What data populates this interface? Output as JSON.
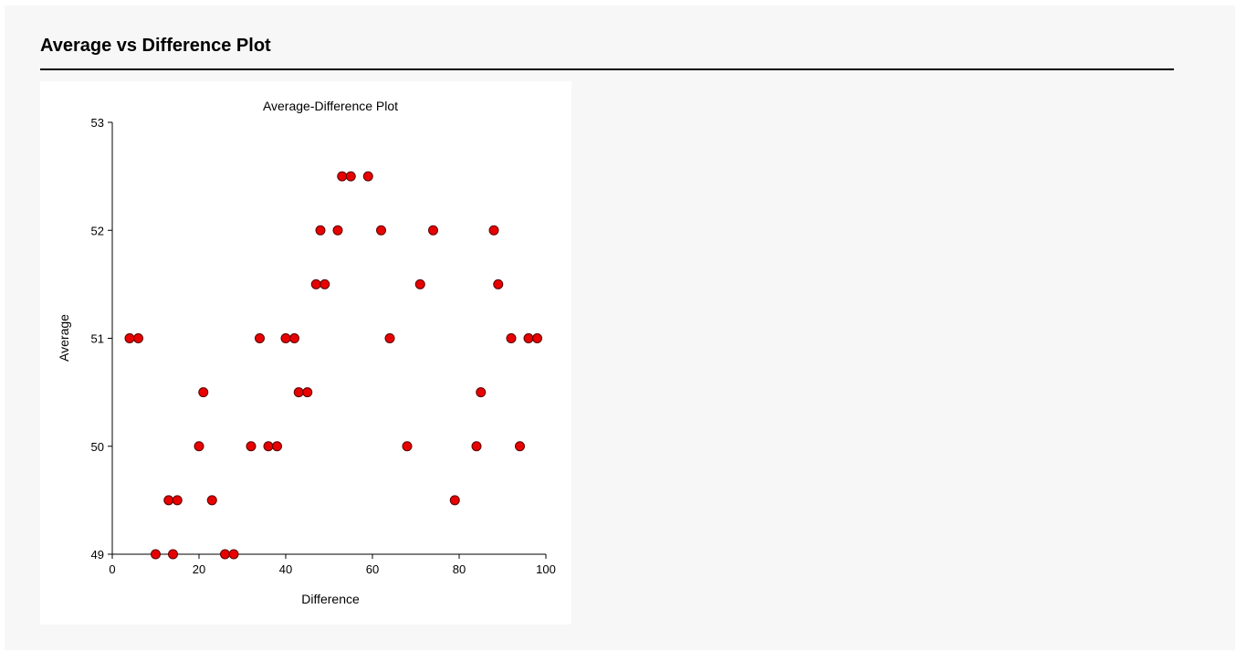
{
  "page": {
    "title": "Average vs Difference Plot"
  },
  "colors": {
    "marker_fill": "#e80000",
    "marker_stroke": "#5a0000",
    "axis": "#000000"
  },
  "chart_data": {
    "type": "scatter",
    "title": "Average-Difference Plot",
    "xlabel": "Difference",
    "ylabel": "Average",
    "xlim": [
      0,
      100
    ],
    "ylim": [
      49,
      53
    ],
    "xticks": [
      0,
      20,
      40,
      60,
      80,
      100
    ],
    "yticks": [
      49,
      50,
      51,
      52,
      53
    ],
    "grid": false,
    "points": [
      {
        "x": 4,
        "y": 51
      },
      {
        "x": 6,
        "y": 51
      },
      {
        "x": 10,
        "y": 49
      },
      {
        "x": 13,
        "y": 49.5
      },
      {
        "x": 14,
        "y": 49
      },
      {
        "x": 15,
        "y": 49.5
      },
      {
        "x": 20,
        "y": 50
      },
      {
        "x": 21,
        "y": 50.5
      },
      {
        "x": 23,
        "y": 49.5
      },
      {
        "x": 26,
        "y": 49
      },
      {
        "x": 28,
        "y": 49
      },
      {
        "x": 32,
        "y": 50
      },
      {
        "x": 34,
        "y": 51
      },
      {
        "x": 36,
        "y": 50
      },
      {
        "x": 38,
        "y": 50
      },
      {
        "x": 40,
        "y": 51
      },
      {
        "x": 42,
        "y": 51
      },
      {
        "x": 43,
        "y": 50.5
      },
      {
        "x": 45,
        "y": 50.5
      },
      {
        "x": 47,
        "y": 51.5
      },
      {
        "x": 48,
        "y": 52
      },
      {
        "x": 49,
        "y": 51.5
      },
      {
        "x": 52,
        "y": 52
      },
      {
        "x": 53,
        "y": 52.5
      },
      {
        "x": 55,
        "y": 52.5
      },
      {
        "x": 59,
        "y": 52.5
      },
      {
        "x": 62,
        "y": 52
      },
      {
        "x": 64,
        "y": 51
      },
      {
        "x": 68,
        "y": 50
      },
      {
        "x": 71,
        "y": 51.5
      },
      {
        "x": 74,
        "y": 52
      },
      {
        "x": 79,
        "y": 49.5
      },
      {
        "x": 84,
        "y": 50
      },
      {
        "x": 85,
        "y": 50.5
      },
      {
        "x": 88,
        "y": 52
      },
      {
        "x": 89,
        "y": 51.5
      },
      {
        "x": 92,
        "y": 51
      },
      {
        "x": 94,
        "y": 50
      },
      {
        "x": 96,
        "y": 51
      },
      {
        "x": 98,
        "y": 51
      }
    ]
  }
}
